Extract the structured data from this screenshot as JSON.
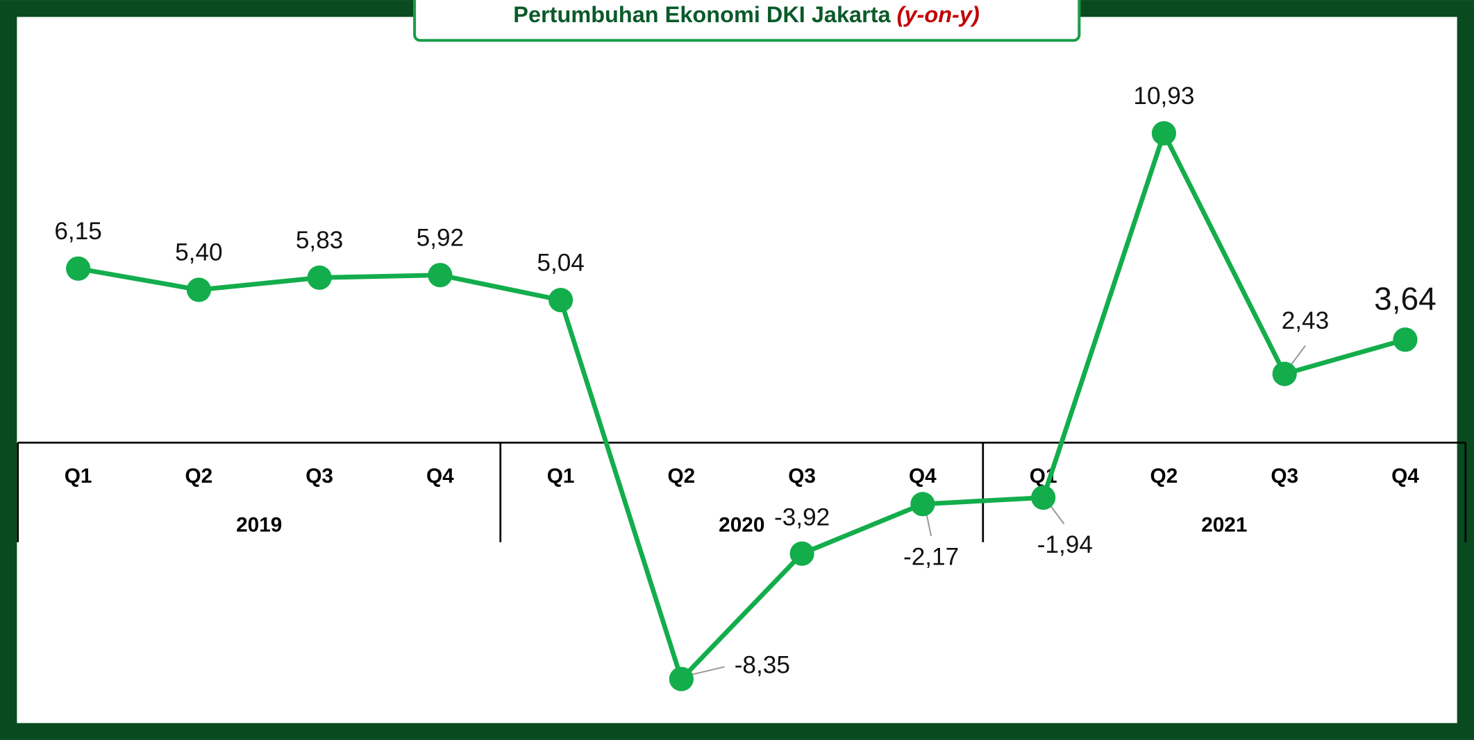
{
  "chart_data": {
    "type": "line",
    "title": "Pertumbuhan Ekonomi DKI Jakarta",
    "title_unit": "(y-on-y)",
    "categories": [
      "Q1",
      "Q2",
      "Q3",
      "Q4",
      "Q1",
      "Q2",
      "Q3",
      "Q4",
      "Q1",
      "Q2",
      "Q3",
      "Q4"
    ],
    "groups": [
      "2019",
      "2020",
      "2021"
    ],
    "values": [
      6.15,
      5.4,
      5.83,
      5.92,
      5.04,
      -8.35,
      -3.92,
      -2.17,
      -1.94,
      10.93,
      2.43,
      3.64
    ],
    "value_labels": [
      "6,15",
      "5,40",
      "5,83",
      "5,92",
      "5,04",
      "-8,35",
      "-3,92",
      "-2,17",
      "-1,94",
      "10,93",
      "2,43",
      "3,64"
    ],
    "color": "#13ad4c",
    "ylim": [
      -10,
      14
    ]
  }
}
